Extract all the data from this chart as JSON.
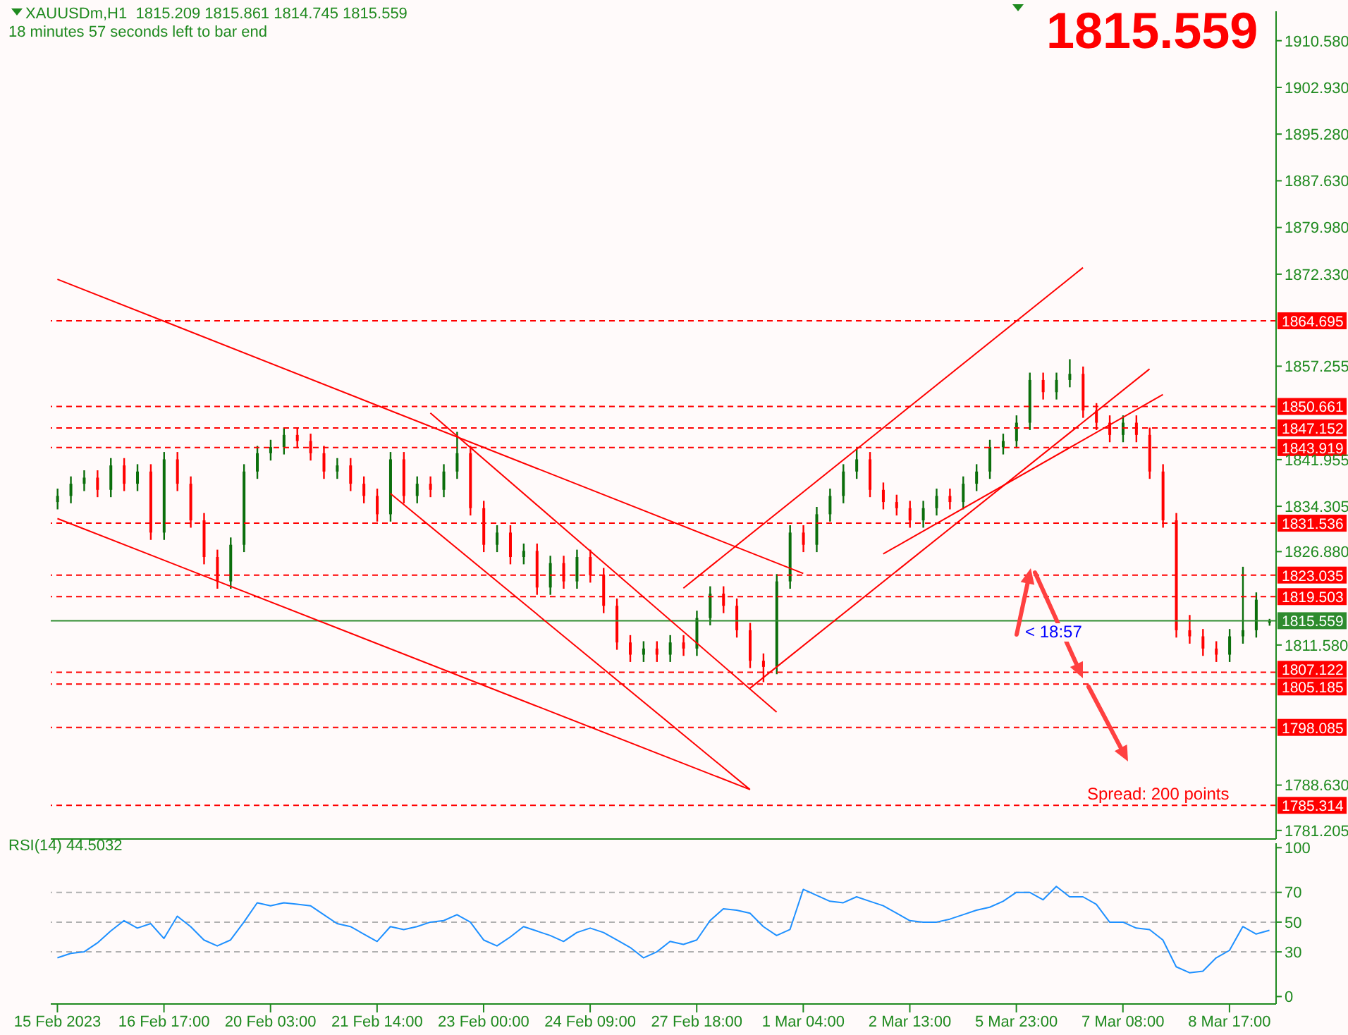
{
  "chart_data": [
    {
      "type": "candlestick",
      "title": "XAUUSDm,H1  1815.209 1815.861 1814.745 1815.559",
      "subtitle": "18 minutes 57 seconds left to bar end",
      "annotations": [
        "1815.559",
        "< 18:57",
        "Spread: 200 points"
      ],
      "categories": [
        null,
        null,
        null,
        null,
        null,
        null,
        null,
        null,
        null,
        null,
        null,
        null,
        null,
        null,
        null,
        null,
        null,
        null,
        null,
        null,
        null,
        null,
        null,
        null,
        null,
        null,
        null,
        null,
        null,
        null,
        null,
        null,
        null,
        null,
        null,
        null,
        null,
        null,
        null,
        null,
        null,
        null,
        null,
        null,
        null,
        null,
        null,
        null,
        null,
        null,
        null,
        null,
        null,
        null,
        null,
        null,
        null,
        null,
        null,
        null,
        null,
        null,
        null,
        null,
        null,
        null,
        null,
        null,
        null,
        null,
        null,
        null,
        null,
        null,
        null,
        null,
        null,
        null,
        null,
        null,
        null,
        null,
        null,
        null,
        null,
        null,
        null,
        null,
        null,
        null,
        null,
        null
      ],
      "ohlc": [
        [
          1835,
          1837.2,
          1833.8,
          1836
        ],
        [
          1836,
          1839.2,
          1834.8,
          1838
        ],
        [
          1838,
          1840.2,
          1836.8,
          1839
        ],
        [
          1839,
          1840.2,
          1835.8,
          1837
        ],
        [
          1837,
          1842.2,
          1835.8,
          1841
        ],
        [
          1841,
          1842.2,
          1836.8,
          1838
        ],
        [
          1838,
          1841.2,
          1836.8,
          1840
        ],
        [
          1840,
          1841.2,
          1828.8,
          1830
        ],
        [
          1830,
          1843.2,
          1828.8,
          1842
        ],
        [
          1842,
          1843.2,
          1836.8,
          1838
        ],
        [
          1838,
          1839.2,
          1830.8,
          1832
        ],
        [
          1832,
          1833.2,
          1824.8,
          1826
        ],
        [
          1826,
          1827.2,
          1820.8,
          1822
        ],
        [
          1822,
          1829.2,
          1820.8,
          1828
        ],
        [
          1828,
          1841.2,
          1826.8,
          1840
        ],
        [
          1840,
          1844.2,
          1838.8,
          1843
        ],
        [
          1843,
          1845.2,
          1841.8,
          1844
        ],
        [
          1844,
          1847.2,
          1842.8,
          1846
        ],
        [
          1846,
          1847.2,
          1843.8,
          1845
        ],
        [
          1845,
          1846.2,
          1841.8,
          1843
        ],
        [
          1843,
          1844.2,
          1838.8,
          1840
        ],
        [
          1840,
          1842.2,
          1838.8,
          1841
        ],
        [
          1841,
          1842.2,
          1836.8,
          1838
        ],
        [
          1838,
          1839.2,
          1834.8,
          1836
        ],
        [
          1836,
          1837.2,
          1831.8,
          1833
        ],
        [
          1833,
          1843.2,
          1831.8,
          1842
        ],
        [
          1842,
          1843.2,
          1834.8,
          1836
        ],
        [
          1836,
          1839.2,
          1834.8,
          1838
        ],
        [
          1838,
          1839.2,
          1835.8,
          1837
        ],
        [
          1837,
          1841.2,
          1835.8,
          1840
        ],
        [
          1840,
          1846.5,
          1838.8,
          1843
        ],
        [
          1843,
          1844.2,
          1832.8,
          1834
        ],
        [
          1834,
          1835.2,
          1826.8,
          1828
        ],
        [
          1828,
          1831.2,
          1826.8,
          1830
        ],
        [
          1830,
          1831.2,
          1824.8,
          1826
        ],
        [
          1826,
          1828.2,
          1824.8,
          1827
        ],
        [
          1827,
          1828.2,
          1819.8,
          1821
        ],
        [
          1821,
          1826.2,
          1819.8,
          1825
        ],
        [
          1825,
          1826.2,
          1820.8,
          1822
        ],
        [
          1822,
          1827.2,
          1820.8,
          1826
        ],
        [
          1826,
          1827.2,
          1821.8,
          1823
        ],
        [
          1823,
          1824.2,
          1816.8,
          1818
        ],
        [
          1818,
          1819.2,
          1810.8,
          1812
        ],
        [
          1812,
          1813.2,
          1808.8,
          1810
        ],
        [
          1810,
          1812.2,
          1808.8,
          1811
        ],
        [
          1811,
          1812.2,
          1808.8,
          1810
        ],
        [
          1810,
          1813.2,
          1808.8,
          1812
        ],
        [
          1812,
          1813.2,
          1809.8,
          1811
        ],
        [
          1811,
          1817.2,
          1809.8,
          1816
        ],
        [
          1816,
          1821.2,
          1814.8,
          1820
        ],
        [
          1820,
          1821.2,
          1816.8,
          1818
        ],
        [
          1818,
          1819.2,
          1812.8,
          1814
        ],
        [
          1814,
          1815.2,
          1807.8,
          1809
        ],
        [
          1809,
          1810.2,
          1805.5,
          1808
        ],
        [
          1808,
          1823.2,
          1806.8,
          1822
        ],
        [
          1822,
          1831.2,
          1820.8,
          1830
        ],
        [
          1830,
          1831.2,
          1826.8,
          1828
        ],
        [
          1828,
          1834.2,
          1826.8,
          1833
        ],
        [
          1833,
          1837.2,
          1831.8,
          1836
        ],
        [
          1836,
          1841.2,
          1834.8,
          1840
        ],
        [
          1840,
          1843.8,
          1838.8,
          1842
        ],
        [
          1842,
          1843.2,
          1835.8,
          1837
        ],
        [
          1837,
          1838.2,
          1833.8,
          1835
        ],
        [
          1835,
          1836.2,
          1832.8,
          1834
        ],
        [
          1834,
          1835.2,
          1830.8,
          1832
        ],
        [
          1832,
          1835.2,
          1830.8,
          1834
        ],
        [
          1834,
          1837.2,
          1832.8,
          1836
        ],
        [
          1836,
          1837.2,
          1833.8,
          1835
        ],
        [
          1835,
          1839.2,
          1833.8,
          1838
        ],
        [
          1838,
          1841.2,
          1836.8,
          1840
        ],
        [
          1840,
          1845.2,
          1838.8,
          1844
        ],
        [
          1844,
          1846.2,
          1842.8,
          1845
        ],
        [
          1845,
          1849.2,
          1843.8,
          1848
        ],
        [
          1848,
          1856.2,
          1846.8,
          1855
        ],
        [
          1855,
          1856.2,
          1851.8,
          1853
        ],
        [
          1853,
          1856.2,
          1851.8,
          1855
        ],
        [
          1855,
          1858.4,
          1853.8,
          1856
        ],
        [
          1856,
          1857.2,
          1848.8,
          1850
        ],
        [
          1850,
          1851.2,
          1846.8,
          1848
        ],
        [
          1848,
          1849.2,
          1844.8,
          1846
        ],
        [
          1846,
          1849.2,
          1844.8,
          1848
        ],
        [
          1848,
          1849.2,
          1844.8,
          1846
        ],
        [
          1846,
          1847.2,
          1838.8,
          1840
        ],
        [
          1840,
          1841.2,
          1830.8,
          1832
        ],
        [
          1832,
          1833.2,
          1812.8,
          1814
        ],
        [
          1814,
          1816.5,
          1811.8,
          1813
        ],
        [
          1813,
          1814.2,
          1809.8,
          1811
        ],
        [
          1811,
          1812.2,
          1808.8,
          1810
        ],
        [
          1810,
          1814.2,
          1808.8,
          1813
        ],
        [
          1813,
          1824.4,
          1811.8,
          1814
        ],
        [
          1814,
          1820.2,
          1812.8,
          1819
        ],
        [
          1815.209,
          1815.861,
          1814.745,
          1815.559
        ]
      ],
      "colors": [
        "#0b6e0b",
        "#0b6e0b",
        "#0b6e0b",
        "#ff0000",
        "#0b6e0b",
        "#ff0000",
        "#0b6e0b",
        "#ff0000",
        "#0b6e0b",
        "#ff0000",
        "#ff0000",
        "#ff0000",
        "#ff0000",
        "#0b6e0b",
        "#0b6e0b",
        "#0b6e0b",
        "#0b6e0b",
        "#0b6e0b",
        "#ff0000",
        "#ff0000",
        "#ff0000",
        "#0b6e0b",
        "#ff0000",
        "#ff0000",
        "#ff0000",
        "#0b6e0b",
        "#ff0000",
        "#0b6e0b",
        "#ff0000",
        "#0b6e0b",
        "#0b6e0b",
        "#ff0000",
        "#ff0000",
        "#0b6e0b",
        "#ff0000",
        "#0b6e0b",
        "#ff0000",
        "#0b6e0b",
        "#ff0000",
        "#0b6e0b",
        "#ff0000",
        "#ff0000",
        "#ff0000",
        "#ff0000",
        "#0b6e0b",
        "#ff0000",
        "#0b6e0b",
        "#ff0000",
        "#0b6e0b",
        "#0b6e0b",
        "#ff0000",
        "#ff0000",
        "#ff0000",
        "#ff0000",
        "#0b6e0b",
        "#0b6e0b",
        "#ff0000",
        "#0b6e0b",
        "#0b6e0b",
        "#0b6e0b",
        "#0b6e0b",
        "#ff0000",
        "#ff0000",
        "#ff0000",
        "#ff0000",
        "#0b6e0b",
        "#0b6e0b",
        "#ff0000",
        "#0b6e0b",
        "#0b6e0b",
        "#0b6e0b",
        "#0b6e0b",
        "#0b6e0b",
        "#0b6e0b",
        "#ff0000",
        "#0b6e0b",
        "#0b6e0b",
        "#ff0000",
        "#ff0000",
        "#ff0000",
        "#0b6e0b",
        "#ff0000",
        "#ff0000",
        "#ff0000",
        "#ff0000",
        "#ff0000",
        "#ff0000",
        "#ff0000",
        "#0b6e0b",
        "#0b6e0b",
        "#0b6e0b",
        "#0b6e0b"
      ],
      "series": [
        {
          "type": "line",
          "color": "#ff0000",
          "values": [
            1871.5,
            null,
            null,
            null,
            null,
            null,
            null,
            null,
            null,
            null,
            null,
            null,
            null,
            null,
            null,
            null,
            null,
            null,
            null,
            null,
            null,
            null,
            null,
            null,
            null,
            null,
            null,
            null,
            null,
            null,
            null,
            null,
            null,
            null,
            null,
            null,
            null,
            null,
            null,
            null,
            null,
            null,
            null,
            null,
            null,
            null,
            null,
            null,
            null,
            null,
            null,
            null,
            null,
            null,
            null,
            null,
            1823.3,
            null,
            null,
            null,
            null,
            null,
            null,
            null,
            null,
            null,
            null,
            null,
            null,
            null,
            null,
            null,
            null,
            null,
            null,
            null,
            null,
            null,
            null,
            null,
            null,
            null,
            null,
            null,
            null,
            null,
            null,
            null,
            null,
            null,
            null,
            null
          ]
        },
        {
          "type": "line",
          "color": "#ff0000",
          "values": [
            1832.3,
            null,
            null,
            null,
            null,
            null,
            null,
            null,
            null,
            null,
            null,
            null,
            null,
            null,
            null,
            null,
            null,
            null,
            null,
            null,
            null,
            null,
            null,
            null,
            null,
            null,
            null,
            null,
            null,
            null,
            null,
            null,
            null,
            null,
            null,
            null,
            null,
            null,
            null,
            null,
            null,
            null,
            null,
            null,
            null,
            null,
            null,
            null,
            null,
            null,
            null,
            null,
            1787.9,
            null,
            null,
            null,
            null,
            null,
            null,
            null,
            null,
            null,
            null,
            null,
            null,
            null,
            null,
            null,
            null,
            null,
            null,
            null,
            null,
            null,
            null,
            null,
            null,
            null,
            null,
            null,
            null,
            null,
            null,
            null,
            null,
            null,
            null,
            null,
            null,
            null,
            null,
            null
          ]
        },
        {
          "type": "line",
          "color": "#ff0000",
          "values": [
            null,
            null,
            null,
            null,
            null,
            null,
            null,
            null,
            null,
            null,
            null,
            null,
            null,
            null,
            null,
            null,
            null,
            null,
            null,
            null,
            null,
            null,
            null,
            null,
            null,
            null,
            null,
            null,
            1849.6,
            null,
            null,
            null,
            null,
            null,
            null,
            null,
            null,
            null,
            null,
            null,
            null,
            null,
            null,
            null,
            null,
            null,
            null,
            null,
            null,
            null,
            null,
            null,
            null,
            null,
            1800.6,
            null,
            null,
            null,
            null,
            null,
            null,
            null,
            null,
            null,
            null,
            null,
            null,
            null,
            null,
            null,
            null,
            null,
            null,
            null,
            null,
            null,
            null,
            null,
            null,
            null,
            null,
            null,
            null,
            null,
            null,
            null,
            null,
            null,
            null,
            null,
            null,
            null
          ]
        },
        {
          "type": "line",
          "color": "#ff0000",
          "values": [
            null,
            null,
            null,
            null,
            null,
            null,
            null,
            null,
            null,
            null,
            null,
            null,
            null,
            null,
            null,
            null,
            null,
            null,
            null,
            null,
            null,
            null,
            null,
            null,
            null,
            1836.4,
            null,
            null,
            null,
            null,
            null,
            null,
            null,
            null,
            null,
            null,
            null,
            null,
            null,
            null,
            null,
            null,
            null,
            null,
            null,
            null,
            null,
            null,
            null,
            null,
            null,
            null,
            1787.9,
            null,
            null,
            null,
            null,
            null,
            null,
            null,
            null,
            null,
            null,
            null,
            null,
            null,
            null,
            null,
            null,
            null,
            null,
            null,
            null,
            null,
            null,
            null,
            null,
            null,
            null,
            null,
            null,
            null,
            null,
            null,
            null,
            null,
            null,
            null,
            null,
            null,
            null,
            null
          ]
        },
        {
          "type": "line",
          "color": "#ff0000",
          "values": [
            null,
            null,
            null,
            null,
            null,
            null,
            null,
            null,
            null,
            null,
            null,
            null,
            null,
            null,
            null,
            null,
            null,
            null,
            null,
            null,
            null,
            null,
            null,
            null,
            null,
            null,
            null,
            null,
            null,
            null,
            null,
            null,
            null,
            null,
            null,
            null,
            null,
            null,
            null,
            null,
            null,
            null,
            null,
            null,
            null,
            null,
            null,
            1820.9,
            null,
            null,
            null,
            null,
            null,
            null,
            null,
            null,
            null,
            null,
            null,
            null,
            null,
            null,
            null,
            null,
            null,
            null,
            null,
            null,
            null,
            null,
            null,
            null,
            null,
            null,
            null,
            null,
            null,
            1873.4,
            null,
            null,
            null,
            null,
            null,
            null,
            null,
            null,
            null,
            null,
            null,
            null,
            null,
            null
          ]
        },
        {
          "type": "line",
          "color": "#ff0000",
          "values": [
            null,
            null,
            null,
            null,
            null,
            null,
            null,
            null,
            null,
            null,
            null,
            null,
            null,
            null,
            null,
            null,
            null,
            null,
            null,
            null,
            null,
            null,
            null,
            null,
            null,
            null,
            null,
            null,
            null,
            null,
            null,
            null,
            null,
            null,
            null,
            null,
            null,
            null,
            null,
            null,
            null,
            null,
            null,
            null,
            null,
            null,
            null,
            null,
            null,
            null,
            null,
            null,
            1804.5,
            null,
            null,
            null,
            null,
            null,
            null,
            null,
            null,
            null,
            null,
            null,
            null,
            null,
            null,
            null,
            null,
            null,
            null,
            null,
            null,
            null,
            null,
            null,
            null,
            null,
            null,
            null,
            null,
            null,
            1856.8,
            null,
            null,
            null,
            null,
            null,
            null,
            null,
            null,
            null
          ]
        },
        {
          "type": "line",
          "color": "#ff0000",
          "values": [
            null,
            null,
            null,
            null,
            null,
            null,
            null,
            null,
            null,
            null,
            null,
            null,
            null,
            null,
            null,
            null,
            null,
            null,
            null,
            null,
            null,
            null,
            null,
            null,
            null,
            null,
            null,
            null,
            null,
            null,
            null,
            null,
            null,
            null,
            null,
            null,
            null,
            null,
            null,
            null,
            null,
            null,
            null,
            null,
            null,
            null,
            null,
            null,
            null,
            null,
            null,
            null,
            null,
            null,
            null,
            null,
            null,
            null,
            null,
            null,
            null,
            null,
            1826.5,
            null,
            null,
            null,
            null,
            null,
            null,
            null,
            null,
            null,
            null,
            null,
            null,
            null,
            null,
            null,
            null,
            null,
            null,
            null,
            null,
            1852.6,
            null,
            null,
            null,
            null,
            null,
            null,
            null,
            null
          ]
        }
      ],
      "ylim": [
        1779.8,
        1915.4
      ],
      "yticks": [
        {
          "value": 1910.58,
          "label": "1910.580"
        },
        {
          "value": 1902.93,
          "label": "1902.930"
        },
        {
          "value": 1895.28,
          "label": "1895.280"
        },
        {
          "value": 1887.63,
          "label": "1887.630"
        },
        {
          "value": 1879.98,
          "label": "1879.980"
        },
        {
          "value": 1872.33,
          "label": "1872.330"
        },
        {
          "value": 1857.255,
          "label": "1857.255"
        },
        {
          "value": 1841.955,
          "label": "1841.955"
        },
        {
          "value": 1834.305,
          "label": "1834.305"
        },
        {
          "value": 1826.88,
          "label": "1826.880"
        },
        {
          "value": 1811.58,
          "label": "1811.580"
        },
        {
          "value": 1788.63,
          "label": "1788.630"
        },
        {
          "value": 1781.205,
          "label": "1781.205"
        }
      ],
      "ref_lines": [
        {
          "axis": "y",
          "value": 1864.695,
          "label": "1864.695",
          "color": "#ff0000",
          "line_style": "dashed"
        },
        {
          "axis": "y",
          "value": 1850.661,
          "label": "1850.661",
          "color": "#ff0000",
          "line_style": "dashed"
        },
        {
          "axis": "y",
          "value": 1847.152,
          "label": "1847.152",
          "color": "#ff0000",
          "line_style": "dashed"
        },
        {
          "axis": "y",
          "value": 1843.919,
          "label": "1843.919",
          "color": "#ff0000",
          "line_style": "dashed"
        },
        {
          "axis": "y",
          "value": 1831.536,
          "label": "1831.536",
          "color": "#ff0000",
          "line_style": "dashed"
        },
        {
          "axis": "y",
          "value": 1823.035,
          "label": "1823.035",
          "color": "#ff0000",
          "line_style": "dashed"
        },
        {
          "axis": "y",
          "value": 1819.503,
          "label": "1819.503",
          "color": "#ff0000",
          "line_style": "dashed"
        },
        {
          "axis": "y",
          "value": 1815.559,
          "label": "1815.559",
          "color": "#2e8b2e",
          "line_style": "solid"
        },
        {
          "axis": "y",
          "value": 1807.122,
          "label": "1807.122",
          "color": "#ff0000",
          "line_style": "dashed"
        },
        {
          "axis": "y",
          "value": 1805.185,
          "label": "1805.185",
          "color": "#ff0000",
          "line_style": "dashed"
        },
        {
          "axis": "y",
          "value": 1798.085,
          "label": "1798.085",
          "color": "#ff0000",
          "line_style": "dashed"
        },
        {
          "axis": "y",
          "value": 1785.314,
          "label": "1785.314",
          "color": "#ff0000",
          "line_style": "dashed"
        }
      ],
      "tick_labels": "y"
    },
    {
      "type": "line",
      "title": "RSI(14) 44.5032",
      "categories": [
        "15 Feb 2023",
        null,
        null,
        null,
        null,
        null,
        null,
        null,
        "16 Feb 17:00",
        null,
        null,
        null,
        null,
        null,
        null,
        null,
        "20 Feb 03:00",
        null,
        null,
        null,
        null,
        null,
        null,
        null,
        "21 Feb 14:00",
        null,
        null,
        null,
        null,
        null,
        null,
        null,
        "23 Feb 00:00",
        null,
        null,
        null,
        null,
        null,
        null,
        null,
        "24 Feb 09:00",
        null,
        null,
        null,
        null,
        null,
        null,
        null,
        "27 Feb 18:00",
        null,
        null,
        null,
        null,
        null,
        null,
        null,
        "1 Mar 04:00",
        null,
        null,
        null,
        null,
        null,
        null,
        null,
        "2 Mar 13:00",
        null,
        null,
        null,
        null,
        null,
        null,
        null,
        "5 Mar 23:00",
        null,
        null,
        null,
        null,
        null,
        null,
        null,
        "7 Mar 08:00",
        null,
        null,
        null,
        null,
        null,
        null,
        null,
        "8 Mar 17:00",
        null,
        null,
        null
      ],
      "series": [
        {
          "color": "#1e90ff",
          "values": [
            26,
            29,
            30,
            36,
            44,
            51,
            46,
            49,
            39,
            54,
            47,
            38,
            34,
            38,
            50,
            63,
            61,
            63,
            62,
            61,
            55,
            49,
            47,
            42,
            37,
            47,
            45,
            47,
            50,
            51,
            55,
            50,
            38,
            34,
            40,
            47,
            44,
            41,
            37,
            43,
            46,
            43,
            38,
            33,
            26,
            30,
            37,
            35,
            38,
            51,
            59,
            58,
            56,
            47,
            41,
            45,
            72,
            68,
            64,
            63,
            67,
            64,
            61,
            56,
            51,
            50,
            50,
            52,
            55,
            58,
            60,
            64,
            70,
            70,
            65,
            74,
            67,
            67,
            62,
            50,
            50,
            46,
            45,
            38,
            20,
            16,
            17,
            26,
            31,
            47,
            42,
            44.5032
          ]
        }
      ],
      "ylim": [
        -5,
        103
      ],
      "yticks": [
        0,
        30,
        50,
        70,
        100
      ],
      "ref_lines": [
        {
          "axis": "y",
          "value": 70,
          "color": "#b0b0b0",
          "line_style": "dashed"
        },
        {
          "axis": "y",
          "value": 50,
          "color": "#b0b0b0",
          "line_style": "dashed"
        },
        {
          "axis": "y",
          "value": 30,
          "color": "#b0b0b0",
          "line_style": "dashed"
        }
      ]
    }
  ]
}
